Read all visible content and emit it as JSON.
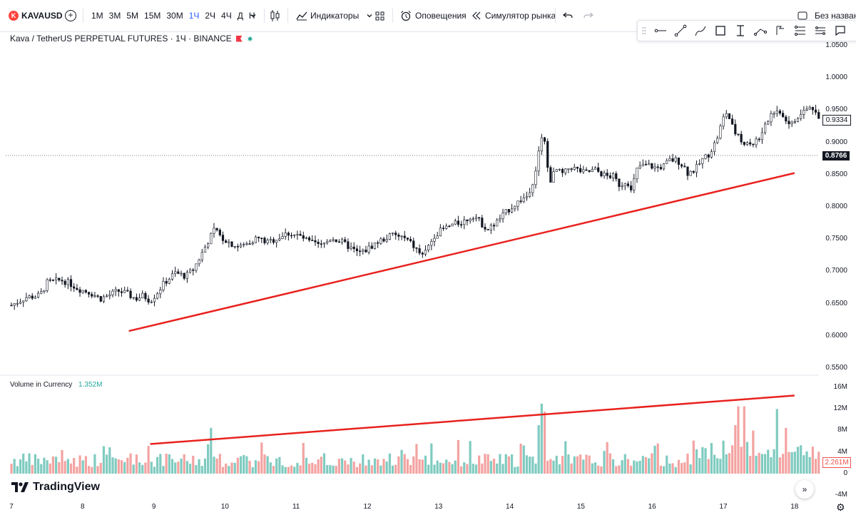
{
  "toolbar": {
    "symbol": "KAVAUSD",
    "symbol_logo": "K",
    "timeframes": [
      "1М",
      "3М",
      "5М",
      "15М",
      "30М",
      "1Ч",
      "2Ч",
      "4Ч",
      "Д",
      "Н"
    ],
    "active_timeframe": "1Ч",
    "indicators_label": "Индикаторы",
    "alerts_label": "Оповещения",
    "replay_label": "Симулятор рынка",
    "layout_name": "Без названия"
  },
  "legend": {
    "title": "Kava / TetherUS PERPETUAL FUTURES · 1Ч · BINANCE"
  },
  "volume_legend": {
    "label": "Volume in Currency",
    "value": "1.352M"
  },
  "price_axis": [
    "1.0500",
    "1.0000",
    "0.9500",
    "0.9000",
    "0.8500",
    "0.8000",
    "0.7500",
    "0.7000",
    "0.6500",
    "0.6000",
    "0.5500"
  ],
  "volume_axis": [
    "16M",
    "12M",
    "8M",
    "4M",
    "0",
    "-4M"
  ],
  "current_price": "0.9334",
  "crosshair_price": "0.8766",
  "current_volume": "2.261M",
  "time_axis": [
    "7",
    "8",
    "9",
    "10",
    "11",
    "12",
    "13",
    "14",
    "15",
    "16",
    "17",
    "18"
  ],
  "branding": "TradingView",
  "colors": {
    "up": "#26a69a",
    "down": "#ef5350",
    "trendline": "#e8221e",
    "candle": "#131722",
    "accent": "#2962ff"
  },
  "chart_data": {
    "type": "line",
    "x_axis": "day of month",
    "price_trendline": [
      [
        8.65,
        0.605
      ],
      [
        18.0,
        0.85
      ]
    ],
    "volume_trendline": [
      [
        8.95,
        5.5
      ],
      [
        18.0,
        14.5
      ]
    ],
    "close": [
      [
        7.0,
        0.645
      ],
      [
        7.2,
        0.657
      ],
      [
        7.4,
        0.66
      ],
      [
        7.5,
        0.68
      ],
      [
        7.7,
        0.684
      ],
      [
        7.8,
        0.68
      ],
      [
        7.95,
        0.67
      ],
      [
        8.1,
        0.665
      ],
      [
        8.25,
        0.655
      ],
      [
        8.4,
        0.662
      ],
      [
        8.5,
        0.667
      ],
      [
        8.6,
        0.664
      ],
      [
        8.75,
        0.655
      ],
      [
        8.85,
        0.66
      ],
      [
        8.95,
        0.652
      ],
      [
        9.05,
        0.665
      ],
      [
        9.15,
        0.68
      ],
      [
        9.3,
        0.695
      ],
      [
        9.45,
        0.69
      ],
      [
        9.55,
        0.7
      ],
      [
        9.65,
        0.72
      ],
      [
        9.75,
        0.742
      ],
      [
        9.85,
        0.762
      ],
      [
        9.95,
        0.75
      ],
      [
        10.1,
        0.74
      ],
      [
        10.2,
        0.735
      ],
      [
        10.3,
        0.74
      ],
      [
        10.45,
        0.75
      ],
      [
        10.6,
        0.742
      ],
      [
        10.75,
        0.75
      ],
      [
        10.9,
        0.757
      ],
      [
        11.05,
        0.752
      ],
      [
        11.2,
        0.742
      ],
      [
        11.35,
        0.737
      ],
      [
        11.5,
        0.75
      ],
      [
        11.65,
        0.742
      ],
      [
        11.75,
        0.735
      ],
      [
        11.85,
        0.727
      ],
      [
        11.95,
        0.728
      ],
      [
        12.1,
        0.74
      ],
      [
        12.2,
        0.746
      ],
      [
        12.35,
        0.754
      ],
      [
        12.5,
        0.75
      ],
      [
        12.6,
        0.742
      ],
      [
        12.7,
        0.73
      ],
      [
        12.78,
        0.72
      ],
      [
        12.85,
        0.735
      ],
      [
        12.95,
        0.755
      ],
      [
        13.05,
        0.762
      ],
      [
        13.2,
        0.77
      ],
      [
        13.35,
        0.775
      ],
      [
        13.5,
        0.785
      ],
      [
        13.6,
        0.772
      ],
      [
        13.7,
        0.762
      ],
      [
        13.85,
        0.778
      ],
      [
        14.0,
        0.795
      ],
      [
        14.15,
        0.808
      ],
      [
        14.25,
        0.815
      ],
      [
        14.35,
        0.845
      ],
      [
        14.45,
        0.91
      ],
      [
        14.5,
        0.9
      ],
      [
        14.55,
        0.835
      ],
      [
        14.65,
        0.855
      ],
      [
        14.75,
        0.848
      ],
      [
        14.85,
        0.86
      ],
      [
        15.05,
        0.85
      ],
      [
        15.2,
        0.855
      ],
      [
        15.35,
        0.845
      ],
      [
        15.45,
        0.845
      ],
      [
        15.55,
        0.83
      ],
      [
        15.65,
        0.84
      ],
      [
        15.7,
        0.82
      ],
      [
        15.8,
        0.86
      ],
      [
        15.95,
        0.862
      ],
      [
        16.05,
        0.858
      ],
      [
        16.15,
        0.86
      ],
      [
        16.25,
        0.87
      ],
      [
        16.35,
        0.87
      ],
      [
        16.45,
        0.86
      ],
      [
        16.5,
        0.85
      ],
      [
        16.6,
        0.855
      ],
      [
        16.7,
        0.87
      ],
      [
        16.8,
        0.88
      ],
      [
        16.9,
        0.9
      ],
      [
        17.0,
        0.935
      ],
      [
        17.05,
        0.945
      ],
      [
        17.15,
        0.915
      ],
      [
        17.25,
        0.9
      ],
      [
        17.4,
        0.895
      ],
      [
        17.55,
        0.91
      ],
      [
        17.65,
        0.94
      ],
      [
        17.75,
        0.95
      ],
      [
        17.85,
        0.935
      ],
      [
        17.95,
        0.925
      ],
      [
        18.05,
        0.935
      ],
      [
        18.15,
        0.948
      ],
      [
        18.25,
        0.952
      ],
      [
        18.34,
        0.9334
      ]
    ]
  }
}
